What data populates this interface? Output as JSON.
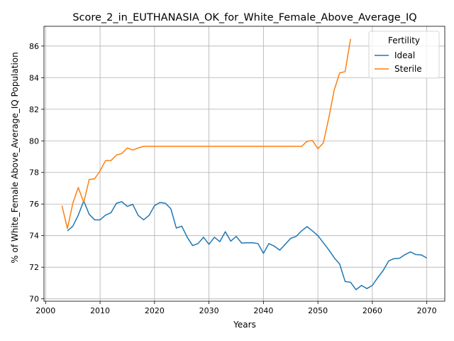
{
  "chart_data": {
    "type": "line",
    "title": "Score_2_in_EUTHANASIA_OK_for_White_Female_Above_Average_IQ",
    "xlabel": "Years",
    "ylabel": "% of White_Female Above_Average_IQ Population",
    "xlim": [
      1999.7,
      2073.3
    ],
    "ylim": [
      69.85,
      87.25
    ],
    "xticks": [
      2000,
      2010,
      2020,
      2030,
      2040,
      2050,
      2060,
      2070
    ],
    "yticks": [
      70,
      72,
      74,
      76,
      78,
      80,
      82,
      84,
      86
    ],
    "grid": true,
    "legend": {
      "title": "Fertility",
      "position": "top-right"
    },
    "series": [
      {
        "name": "Ideal",
        "color": "#1f77b4",
        "x": [
          2004,
          2005,
          2006,
          2007,
          2008,
          2009,
          2010,
          2011,
          2012,
          2013,
          2014,
          2015,
          2016,
          2017,
          2018,
          2019,
          2020,
          2021,
          2022,
          2023,
          2024,
          2025,
          2026,
          2027,
          2028,
          2029,
          2030,
          2031,
          2032,
          2033,
          2034,
          2035,
          2036,
          2037,
          2038,
          2039,
          2040,
          2041,
          2042,
          2043,
          2044,
          2045,
          2046,
          2047,
          2048,
          2049,
          2050,
          2051,
          2052,
          2053,
          2054,
          2055,
          2056,
          2057,
          2058,
          2059,
          2060,
          2061,
          2062,
          2063,
          2064,
          2065,
          2066,
          2067,
          2068,
          2069,
          2070
        ],
        "y": [
          74.3,
          74.6,
          75.3,
          76.2,
          75.35,
          75.0,
          75.0,
          75.3,
          75.45,
          76.05,
          76.15,
          75.85,
          75.98,
          75.28,
          75.0,
          75.28,
          75.9,
          76.1,
          76.05,
          75.7,
          74.48,
          74.6,
          73.9,
          73.37,
          73.5,
          73.9,
          73.45,
          73.9,
          73.62,
          74.25,
          73.65,
          73.95,
          73.53,
          73.55,
          73.55,
          73.5,
          72.88,
          73.5,
          73.33,
          73.08,
          73.45,
          73.83,
          73.95,
          74.3,
          74.57,
          74.3,
          74.0,
          73.55,
          73.1,
          72.6,
          72.2,
          71.1,
          71.05,
          70.58,
          70.85,
          70.65,
          70.85,
          71.35,
          71.8,
          72.4,
          72.55,
          72.57,
          72.8,
          72.97,
          72.8,
          72.78,
          72.58
        ]
      },
      {
        "name": "Sterile",
        "color": "#ff7f0e",
        "x": [
          2003,
          2004,
          2005,
          2006,
          2007,
          2008,
          2009,
          2010,
          2011,
          2012,
          2013,
          2014,
          2015,
          2016,
          2017,
          2018,
          2019,
          2020,
          2021,
          2022,
          2023,
          2024,
          2025,
          2026,
          2027,
          2028,
          2029,
          2030,
          2031,
          2032,
          2033,
          2034,
          2035,
          2036,
          2037,
          2038,
          2039,
          2040,
          2041,
          2042,
          2043,
          2044,
          2045,
          2046,
          2047,
          2048,
          2049,
          2050,
          2051,
          2052,
          2053,
          2054,
          2055,
          2056
        ],
        "y": [
          75.9,
          74.45,
          76.05,
          77.05,
          76.1,
          77.55,
          77.6,
          78.1,
          78.75,
          78.75,
          79.1,
          79.2,
          79.55,
          79.42,
          79.55,
          79.65,
          79.65,
          79.65,
          79.65,
          79.65,
          79.65,
          79.65,
          79.65,
          79.65,
          79.65,
          79.65,
          79.65,
          79.65,
          79.65,
          79.65,
          79.65,
          79.65,
          79.65,
          79.65,
          79.65,
          79.65,
          79.65,
          79.65,
          79.65,
          79.65,
          79.65,
          79.65,
          79.65,
          79.65,
          79.65,
          79.97,
          80.02,
          79.5,
          79.87,
          81.45,
          83.22,
          84.3,
          84.38,
          86.45
        ]
      }
    ]
  }
}
